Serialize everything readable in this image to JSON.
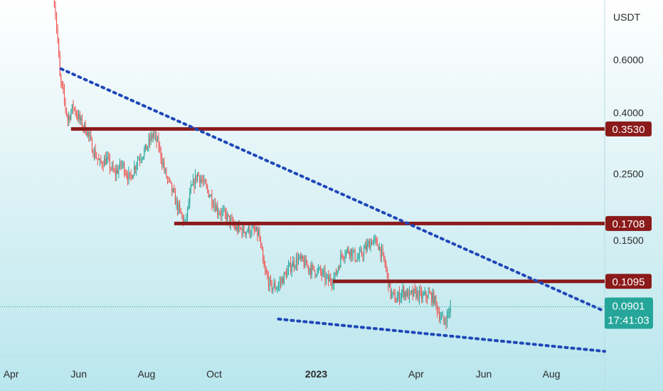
{
  "chart_data": {
    "type": "candlestick",
    "y_unit": "USDT",
    "y_scale": "log",
    "ylim": [
      0.062,
      0.95
    ],
    "xlim": [
      "2022-03-22",
      "2023-09-18"
    ],
    "y_ticks": [
      "0.6000",
      "0.4000",
      "0.2500",
      "0.1500"
    ],
    "y_tick_values": [
      0.6,
      0.4,
      0.25,
      0.15
    ],
    "x_ticks": [
      {
        "label": "Apr",
        "date": "2022-04-01",
        "bold": false
      },
      {
        "label": "Jun",
        "date": "2022-06-01",
        "bold": false
      },
      {
        "label": "Aug",
        "date": "2022-08-01",
        "bold": false
      },
      {
        "label": "Oct",
        "date": "2022-10-01",
        "bold": false
      },
      {
        "label": "2023",
        "date": "2023-01-01",
        "bold": true
      },
      {
        "label": "Apr",
        "date": "2023-04-01",
        "bold": false
      },
      {
        "label": "Jun",
        "date": "2023-06-01",
        "bold": false
      },
      {
        "label": "Aug",
        "date": "2023-08-01",
        "bold": false
      }
    ],
    "levels": [
      {
        "value": 0.353,
        "label": "0.3530",
        "from": "2022-05-25"
      },
      {
        "value": 0.1708,
        "label": "0.1708",
        "from": "2022-08-26"
      },
      {
        "value": 0.1095,
        "label": "0.1095",
        "from": "2023-01-16"
      }
    ],
    "trendlines": [
      {
        "name": "upper",
        "from": {
          "date": "2022-05-16",
          "value": 0.56
        },
        "to": {
          "date": "2023-09-18",
          "value": 0.087
        }
      },
      {
        "name": "lower",
        "from": {
          "date": "2022-11-28",
          "value": 0.082
        },
        "to": {
          "date": "2023-09-18",
          "value": 0.064
        }
      }
    ],
    "last_price": {
      "value": 0.0901,
      "label": "0.0901",
      "countdown": "17:41:03"
    },
    "colors": {
      "up": "#26a69a",
      "down": "#ef5350",
      "level": "#8b1a1a",
      "trend": "#1f47b8",
      "last": "#26a69a"
    },
    "price_path": [
      [
        "2022-05-10",
        0.95
      ],
      [
        "2022-05-13",
        0.7
      ],
      [
        "2022-05-15",
        0.52
      ],
      [
        "2022-05-18",
        0.46
      ],
      [
        "2022-05-22",
        0.38
      ],
      [
        "2022-05-27",
        0.42
      ],
      [
        "2022-06-03",
        0.37
      ],
      [
        "2022-06-08",
        0.35
      ],
      [
        "2022-06-14",
        0.3
      ],
      [
        "2022-06-20",
        0.27
      ],
      [
        "2022-06-26",
        0.28
      ],
      [
        "2022-07-03",
        0.25
      ],
      [
        "2022-07-10",
        0.27
      ],
      [
        "2022-07-17",
        0.24
      ],
      [
        "2022-07-24",
        0.28
      ],
      [
        "2022-07-31",
        0.3
      ],
      [
        "2022-08-07",
        0.34
      ],
      [
        "2022-08-12",
        0.31
      ],
      [
        "2022-08-18",
        0.25
      ],
      [
        "2022-08-24",
        0.22
      ],
      [
        "2022-08-30",
        0.19
      ],
      [
        "2022-09-05",
        0.17
      ],
      [
        "2022-09-10",
        0.22
      ],
      [
        "2022-09-16",
        0.25
      ],
      [
        "2022-09-22",
        0.23
      ],
      [
        "2022-09-28",
        0.21
      ],
      [
        "2022-10-04",
        0.19
      ],
      [
        "2022-10-12",
        0.18
      ],
      [
        "2022-10-20",
        0.165
      ],
      [
        "2022-10-28",
        0.162
      ],
      [
        "2022-11-05",
        0.162
      ],
      [
        "2022-11-10",
        0.158
      ],
      [
        "2022-11-15",
        0.12
      ],
      [
        "2022-11-21",
        0.105
      ],
      [
        "2022-11-27",
        0.105
      ],
      [
        "2022-12-04",
        0.115
      ],
      [
        "2022-12-10",
        0.125
      ],
      [
        "2022-12-16",
        0.13
      ],
      [
        "2022-12-22",
        0.125
      ],
      [
        "2022-12-28",
        0.12
      ],
      [
        "2023-01-04",
        0.118
      ],
      [
        "2023-01-12",
        0.11
      ],
      [
        "2023-01-18",
        0.113
      ],
      [
        "2023-01-24",
        0.135
      ],
      [
        "2023-01-31",
        0.14
      ],
      [
        "2023-02-07",
        0.13
      ],
      [
        "2023-02-14",
        0.14
      ],
      [
        "2023-02-20",
        0.15
      ],
      [
        "2023-02-26",
        0.145
      ],
      [
        "2023-03-04",
        0.125
      ],
      [
        "2023-03-09",
        0.1
      ],
      [
        "2023-03-14",
        0.095
      ],
      [
        "2023-03-20",
        0.102
      ],
      [
        "2023-03-26",
        0.098
      ],
      [
        "2023-04-01",
        0.1
      ],
      [
        "2023-04-07",
        0.097
      ],
      [
        "2023-04-12",
        0.099
      ],
      [
        "2023-04-17",
        0.096
      ],
      [
        "2023-04-22",
        0.085
      ],
      [
        "2023-04-26",
        0.08
      ],
      [
        "2023-04-29",
        0.084
      ],
      [
        "2023-05-02",
        0.0901
      ]
    ]
  }
}
